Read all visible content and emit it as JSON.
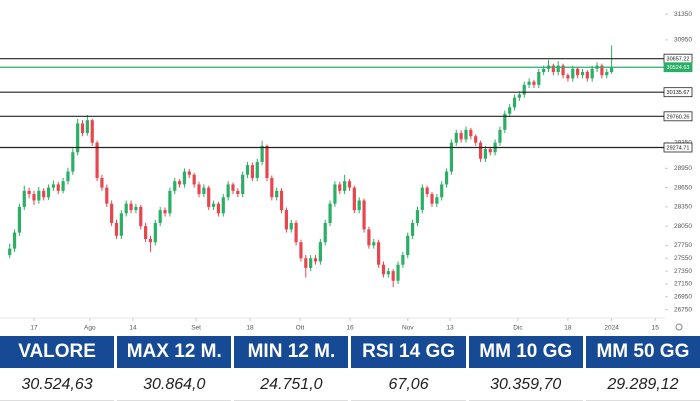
{
  "chart_data": {
    "type": "candlestick",
    "up_color": "#2bae66",
    "down_color": "#e8464e",
    "xlim": [
      -2,
      135
    ],
    "xticks": [
      {
        "value": 5,
        "label": "17"
      },
      {
        "value": 16.5,
        "label": "Ago"
      },
      {
        "value": 25.4,
        "label": "14"
      },
      {
        "value": 38.4,
        "label": "Set"
      },
      {
        "value": 49.5,
        "label": "18"
      },
      {
        "value": 59.8,
        "label": "Ott"
      },
      {
        "value": 70.1,
        "label": "16"
      },
      {
        "value": 82,
        "label": "Nov"
      },
      {
        "value": 90.7,
        "label": "13"
      },
      {
        "value": 104.7,
        "label": "Dic"
      },
      {
        "value": 115,
        "label": "18"
      },
      {
        "value": 124,
        "label": "2024"
      },
      {
        "value": 133,
        "label": "15"
      }
    ],
    "ylim": [
      26620,
      31540
    ],
    "yticks": [
      26750,
      26950,
      27150,
      27350,
      27550,
      27750,
      28050,
      28350,
      28650,
      28950,
      29350,
      30950,
      31350
    ],
    "levels": [
      {
        "value": 30657.22,
        "color": "#222222"
      },
      {
        "value": 30524.63,
        "color": "#2bae66"
      },
      {
        "value": 30135.67,
        "color": "#222222"
      },
      {
        "value": 29760.26,
        "color": "#222222"
      },
      {
        "value": 29274.71,
        "color": "#222222"
      }
    ],
    "ohlc": [
      [
        27600,
        27780,
        27550,
        27700
      ],
      [
        27700,
        28000,
        27650,
        27950
      ],
      [
        27950,
        28400,
        27900,
        28350
      ],
      [
        28350,
        28680,
        28300,
        28600
      ],
      [
        28600,
        28650,
        28480,
        28550
      ],
      [
        28550,
        28600,
        28380,
        28450
      ],
      [
        28450,
        28660,
        28400,
        28600
      ],
      [
        28600,
        28640,
        28450,
        28500
      ],
      [
        28500,
        28700,
        28460,
        28650
      ],
      [
        28650,
        28760,
        28600,
        28700
      ],
      [
        28700,
        28740,
        28550,
        28600
      ],
      [
        28600,
        28800,
        28560,
        28750
      ],
      [
        28750,
        28960,
        28700,
        28900
      ],
      [
        28900,
        29260,
        28850,
        29200
      ],
      [
        29200,
        29720,
        29150,
        29650
      ],
      [
        29650,
        29700,
        29450,
        29500
      ],
      [
        29500,
        29780,
        29460,
        29700
      ],
      [
        29700,
        29720,
        29300,
        29350
      ],
      [
        29350,
        29380,
        28750,
        28800
      ],
      [
        28800,
        28850,
        28600,
        28650
      ],
      [
        28650,
        28700,
        28350,
        28400
      ],
      [
        28400,
        28450,
        28050,
        28100
      ],
      [
        28100,
        28150,
        27850,
        27900
      ],
      [
        27900,
        28300,
        27850,
        28250
      ],
      [
        28250,
        28450,
        28200,
        28400
      ],
      [
        28400,
        28450,
        28250,
        28300
      ],
      [
        28300,
        28400,
        28250,
        28350
      ],
      [
        28350,
        28380,
        28000,
        28050
      ],
      [
        28050,
        28100,
        27800,
        27850
      ],
      [
        27850,
        27900,
        27650,
        27800
      ],
      [
        27800,
        28150,
        27750,
        28100
      ],
      [
        28100,
        28350,
        28050,
        28300
      ],
      [
        28300,
        28340,
        28200,
        28250
      ],
      [
        28250,
        28650,
        28200,
        28600
      ],
      [
        28600,
        28800,
        28550,
        28750
      ],
      [
        28750,
        28780,
        28650,
        28700
      ],
      [
        28700,
        28950,
        28650,
        28900
      ],
      [
        28900,
        28940,
        28800,
        28850
      ],
      [
        28850,
        28880,
        28650,
        28700
      ],
      [
        28700,
        28740,
        28500,
        28550
      ],
      [
        28550,
        28700,
        28500,
        28650
      ],
      [
        28650,
        28680,
        28300,
        28350
      ],
      [
        28350,
        28450,
        28300,
        28400
      ],
      [
        28400,
        28430,
        28200,
        28250
      ],
      [
        28250,
        28550,
        28200,
        28500
      ],
      [
        28500,
        28750,
        28450,
        28700
      ],
      [
        28700,
        28730,
        28550,
        28600
      ],
      [
        28600,
        28640,
        28500,
        28550
      ],
      [
        28550,
        28900,
        28500,
        28850
      ],
      [
        28850,
        29050,
        28800,
        29000
      ],
      [
        29000,
        29040,
        28750,
        28800
      ],
      [
        28800,
        29100,
        28750,
        29050
      ],
      [
        29050,
        29380,
        29000,
        29300
      ],
      [
        29300,
        29320,
        28750,
        28800
      ],
      [
        28800,
        28840,
        28450,
        28500
      ],
      [
        28500,
        28650,
        28450,
        28600
      ],
      [
        28600,
        28640,
        28250,
        28300
      ],
      [
        28300,
        28340,
        27950,
        28000
      ],
      [
        28000,
        28150,
        27950,
        28100
      ],
      [
        28100,
        28140,
        27750,
        27800
      ],
      [
        27800,
        27840,
        27500,
        27550
      ],
      [
        27550,
        27600,
        27250,
        27400
      ],
      [
        27400,
        27600,
        27350,
        27550
      ],
      [
        27550,
        27600,
        27450,
        27500
      ],
      [
        27500,
        27850,
        27450,
        27800
      ],
      [
        27800,
        28150,
        27750,
        28100
      ],
      [
        28100,
        28450,
        28050,
        28400
      ],
      [
        28400,
        28750,
        28350,
        28700
      ],
      [
        28700,
        28740,
        28550,
        28600
      ],
      [
        28600,
        28850,
        28550,
        28750
      ],
      [
        28750,
        28780,
        28600,
        28650
      ],
      [
        28650,
        28680,
        28250,
        28300
      ],
      [
        28300,
        28500,
        28250,
        28450
      ],
      [
        28450,
        28480,
        27950,
        28000
      ],
      [
        28000,
        28040,
        27700,
        27750
      ],
      [
        27750,
        27850,
        27700,
        27800
      ],
      [
        27800,
        27840,
        27400,
        27450
      ],
      [
        27450,
        27500,
        27250,
        27300
      ],
      [
        27300,
        27400,
        27250,
        27350
      ],
      [
        27350,
        27380,
        27100,
        27200
      ],
      [
        27200,
        27500,
        27150,
        27450
      ],
      [
        27450,
        27650,
        27400,
        27600
      ],
      [
        27600,
        27950,
        27550,
        27900
      ],
      [
        27900,
        28150,
        27850,
        28100
      ],
      [
        28100,
        28350,
        28050,
        28300
      ],
      [
        28300,
        28700,
        28250,
        28650
      ],
      [
        28650,
        28680,
        28500,
        28550
      ],
      [
        28550,
        28580,
        28350,
        28400
      ],
      [
        28400,
        28550,
        28350,
        28500
      ],
      [
        28500,
        28750,
        28450,
        28700
      ],
      [
        28700,
        28950,
        28650,
        28900
      ],
      [
        28900,
        29400,
        28850,
        29350
      ],
      [
        29350,
        29550,
        29300,
        29500
      ],
      [
        29500,
        29540,
        29350,
        29400
      ],
      [
        29400,
        29600,
        29350,
        29550
      ],
      [
        29550,
        29580,
        29400,
        29450
      ],
      [
        29450,
        29480,
        29300,
        29350
      ],
      [
        29350,
        29380,
        29050,
        29100
      ],
      [
        29100,
        29300,
        29050,
        29250
      ],
      [
        29250,
        29280,
        29150,
        29200
      ],
      [
        29200,
        29400,
        29150,
        29350
      ],
      [
        29350,
        29600,
        29300,
        29550
      ],
      [
        29550,
        29850,
        29500,
        29800
      ],
      [
        29800,
        29950,
        29750,
        29900
      ],
      [
        29900,
        30100,
        29850,
        30050
      ],
      [
        30050,
        30150,
        30000,
        30100
      ],
      [
        30100,
        30300,
        30050,
        30250
      ],
      [
        30250,
        30350,
        30200,
        30300
      ],
      [
        30300,
        30330,
        30200,
        30250
      ],
      [
        30250,
        30500,
        30200,
        30450
      ],
      [
        30450,
        30550,
        30400,
        30500
      ],
      [
        30500,
        30640,
        30450,
        30550
      ],
      [
        30550,
        30580,
        30400,
        30450
      ],
      [
        30450,
        30620,
        30400,
        30550
      ],
      [
        30550,
        30580,
        30350,
        30400
      ],
      [
        30400,
        30430,
        30300,
        30350
      ],
      [
        30350,
        30550,
        30300,
        30500
      ],
      [
        30500,
        30530,
        30350,
        30400
      ],
      [
        30400,
        30500,
        30350,
        30450
      ],
      [
        30450,
        30480,
        30300,
        30350
      ],
      [
        30350,
        30550,
        30300,
        30500
      ],
      [
        30500,
        30600,
        30450,
        30550
      ],
      [
        30550,
        30580,
        30350,
        30400
      ],
      [
        30400,
        30500,
        30350,
        30450
      ],
      [
        30450,
        30864,
        30420,
        30524.63
      ]
    ]
  },
  "table": {
    "headers": [
      "VALORE",
      "MAX 12 M.",
      "MIN 12 M.",
      "RSI 14 GG",
      "MM 10 GG",
      "MM 50 GG"
    ],
    "values": [
      "30.524,63",
      "30.864,0",
      "24.751,0",
      "67,06",
      "30.359,70",
      "29.289,12"
    ]
  }
}
